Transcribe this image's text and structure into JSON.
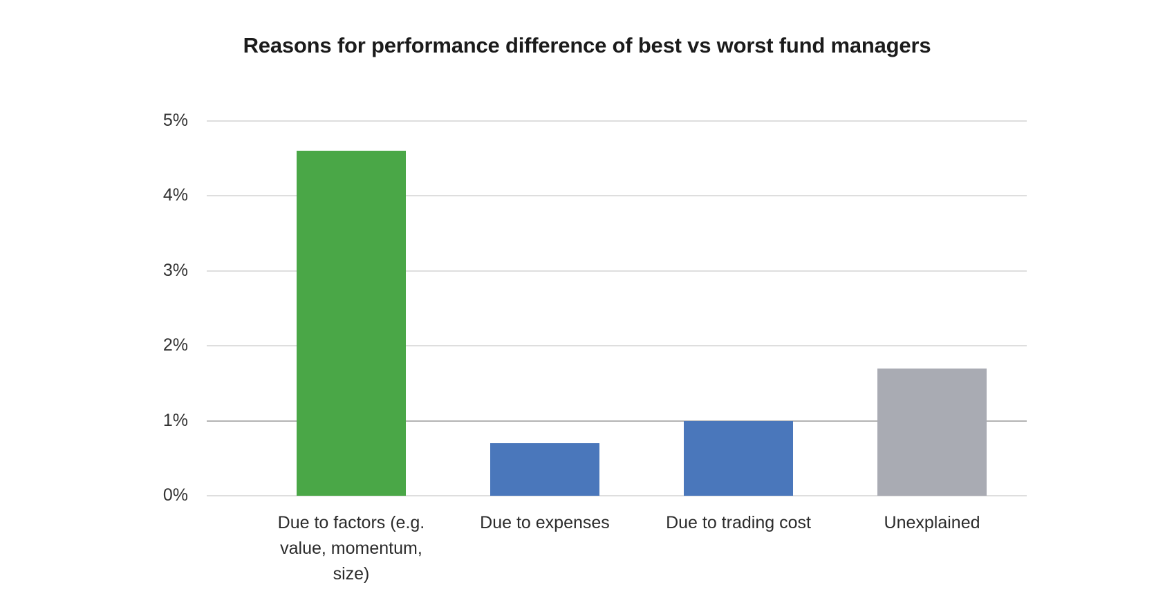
{
  "title": "Reasons for performance difference of best vs worst fund managers",
  "chart_data": {
    "type": "bar",
    "title": "Reasons for performance difference of best vs worst fund managers",
    "categories": [
      "Due to factors (e.g. value, momentum, size)",
      "Due to expenses",
      "Due to trading cost",
      "Unexplained"
    ],
    "values": [
      4.6,
      0.7,
      1.0,
      1.7
    ],
    "unit": "%",
    "bar_colors": [
      "#4aa747",
      "#4a77bb",
      "#4a77bb",
      "#a9abb3"
    ],
    "xlabel": "",
    "ylabel": "",
    "ylim": [
      0,
      5
    ],
    "yticks": [
      "0%",
      "1%",
      "2%",
      "3%",
      "4%",
      "5%"
    ],
    "grid": true,
    "emphasized_gridline": "1%",
    "gridline_color": "#dedede",
    "emphasized_gridline_color": "#b3b3b3",
    "legend": "none",
    "background": "#ffffff",
    "text_color": "#2b2b2b"
  }
}
